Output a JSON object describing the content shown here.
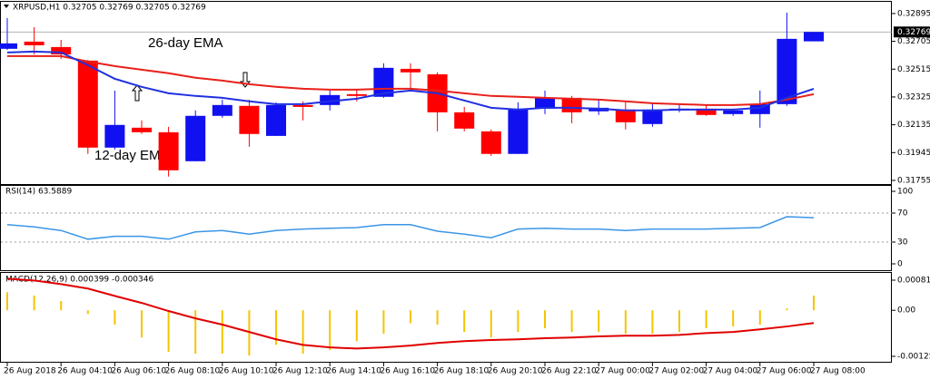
{
  "chart_data": [
    {
      "type": "candlestick",
      "title": "XRPUSD,H1  0.32705 0.32769 0.32705 0.32769",
      "categories": [
        "26 Aug 2018",
        null,
        "26 Aug 04:10",
        null,
        "26 Aug 06:10",
        null,
        "26 Aug 08:10",
        null,
        "26 Aug 10:10",
        null,
        "26 Aug 12:10",
        null,
        "26 Aug 14:10",
        null,
        "26 Aug 16:10",
        null,
        "26 Aug 18:10",
        null,
        "26 Aug 20:10",
        null,
        "26 Aug 22:10",
        null,
        "27 Aug 00:00",
        null,
        "27 Aug 02:00",
        null,
        "27 Aug 04:00",
        null,
        "27 Aug 06:00",
        null,
        "27 Aug 08:00"
      ],
      "open": [
        0.32654,
        0.32703,
        0.32666,
        0.32573,
        0.31979,
        0.32115,
        0.32084,
        0.31886,
        0.32196,
        0.32264,
        0.32059,
        0.3227,
        0.3227,
        0.32344,
        0.32326,
        0.32517,
        0.3248,
        0.3222,
        0.3209,
        0.31936,
        0.32245,
        0.32319,
        0.32227,
        0.32239,
        0.3214,
        0.32233,
        0.32245,
        0.32208,
        0.32208,
        0.32276,
        0.32705
      ],
      "high": [
        0.32864,
        0.32802,
        0.32715,
        0.32579,
        0.32369,
        0.32165,
        0.32121,
        0.32233,
        0.32307,
        0.32307,
        0.32288,
        0.32295,
        0.32369,
        0.32381,
        0.32555,
        0.32555,
        0.32493,
        0.32257,
        0.32103,
        0.32288,
        0.32369,
        0.32332,
        0.32307,
        0.32295,
        0.32288,
        0.3227,
        0.3227,
        0.32245,
        0.32369,
        0.32901,
        0.32769
      ],
      "low": [
        0.32647,
        0.32616,
        0.32585,
        0.31936,
        0.31966,
        0.32072,
        0.31781,
        0.31886,
        0.32183,
        0.31985,
        0.32059,
        0.32165,
        0.32233,
        0.32295,
        0.32319,
        0.32369,
        0.3209,
        0.3209,
        0.31923,
        0.31936,
        0.32208,
        0.32146,
        0.32202,
        0.32103,
        0.32121,
        0.3222,
        0.32196,
        0.32196,
        0.32115,
        0.32264,
        0.32705
      ],
      "close": [
        0.32691,
        0.32678,
        0.32616,
        0.31979,
        0.32134,
        0.32084,
        0.31824,
        0.32196,
        0.3227,
        0.32072,
        0.3227,
        0.32257,
        0.32338,
        0.32332,
        0.32524,
        0.32493,
        0.3222,
        0.32109,
        0.31936,
        0.32245,
        0.32319,
        0.3222,
        0.32251,
        0.32152,
        0.32239,
        0.32245,
        0.32202,
        0.32233,
        0.32276,
        0.32722,
        0.32769
      ],
      "up_color": "#1010f0",
      "down_color": "#ff0000",
      "series": [
        {
          "name": "26-day EMA",
          "color": "#e8201a",
          "values": [
            0.32604,
            0.32604,
            0.32604,
            0.32567,
            0.32536,
            0.32511,
            0.32487,
            0.32456,
            0.32437,
            0.32412,
            0.32394,
            0.32381,
            0.32375,
            0.32375,
            0.32381,
            0.32381,
            0.32369,
            0.3235,
            0.32332,
            0.32326,
            0.32319,
            0.32313,
            0.32307,
            0.32295,
            0.32282,
            0.32276,
            0.3227,
            0.3227,
            0.32276,
            0.32307,
            0.32344
          ]
        },
        {
          "name": "12-day EMA",
          "color": "#2030e0",
          "values": [
            0.32629,
            0.32635,
            0.32629,
            0.32542,
            0.32449,
            0.32394,
            0.3235,
            0.32332,
            0.32319,
            0.32295,
            0.32276,
            0.32276,
            0.32295,
            0.32313,
            0.3235,
            0.32369,
            0.3235,
            0.32301,
            0.32251,
            0.32239,
            0.32251,
            0.32251,
            0.32245,
            0.32233,
            0.32233,
            0.32239,
            0.32239,
            0.32239,
            0.32251,
            0.32319,
            0.32381
          ]
        }
      ],
      "last_price": 0.32769,
      "ylim": [
        0.3173,
        0.32975
      ],
      "yticks": [
        0.32895,
        0.32705,
        0.32515,
        0.32325,
        0.32135,
        0.31945,
        0.31755
      ]
    },
    {
      "type": "line",
      "title": "RSI(14) 63.5889",
      "series": [
        {
          "color": "#3a96e6",
          "values": [
            54,
            51,
            46,
            34,
            38,
            38,
            34,
            44,
            46,
            41,
            46,
            48,
            49,
            50,
            54,
            54,
            45,
            41,
            36,
            48,
            49,
            48,
            48,
            46,
            48,
            48,
            48,
            49,
            50,
            65,
            63.5889
          ]
        }
      ],
      "ylim": [
        -8.75,
        108.75
      ],
      "yticks": [
        100,
        70,
        30,
        0
      ]
    },
    {
      "type": "macd",
      "title": "MACD(12,26,9) 0.000399 -0.000346",
      "histogram": {
        "color": "#f5c400",
        "values": [
          0.00049,
          0.0004,
          0.00025,
          -0.0001,
          -0.00039,
          -0.00074,
          -0.00113,
          -0.00118,
          -0.00118,
          -0.00123,
          -0.00094,
          -0.00118,
          -0.00108,
          -0.00084,
          -0.00064,
          -0.00035,
          -0.00039,
          -0.00059,
          -0.00074,
          -0.00059,
          -0.00049,
          -0.00059,
          -0.00059,
          -0.00064,
          -0.00064,
          -0.00059,
          -0.00049,
          -0.00044,
          -0.00039,
          5e-05,
          0.000399
        ]
      },
      "signal": {
        "color": "#e00000",
        "values": [
          0.00086,
          0.00081,
          0.00071,
          0.00059,
          0.00039,
          0.0002,
          -2e-05,
          -0.00022,
          -0.00039,
          -0.00059,
          -0.00079,
          -0.00094,
          -0.00101,
          -0.00104,
          -0.00101,
          -0.00096,
          -0.00089,
          -0.00084,
          -0.00081,
          -0.00079,
          -0.00076,
          -0.00074,
          -0.00071,
          -0.00069,
          -0.00069,
          -0.00067,
          -0.00062,
          -0.00059,
          -0.00052,
          -0.00044,
          -0.000346
        ]
      },
      "ylim": [
        -0.001425,
        0.001041
      ],
      "yticks": [
        0.000819,
        {
          "value": 0,
          "label": "0.00"
        },
        -0.001252
      ]
    }
  ]
}
